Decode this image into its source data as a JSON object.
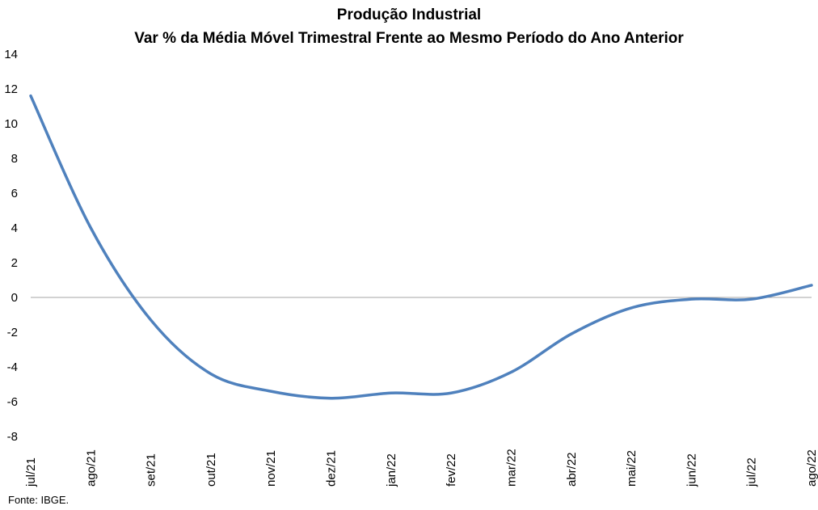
{
  "chart_data": {
    "type": "line",
    "title": "Produção Industrial",
    "subtitle": "Var % da Média Móvel Trimestral Frente ao Mesmo Período do Ano Anterior",
    "xlabel": "",
    "ylabel": "",
    "categories": [
      "jul/21",
      "ago/21",
      "set/21",
      "out/21",
      "nov/21",
      "dez/21",
      "jan/22",
      "fev/22",
      "mar/22",
      "abr/22",
      "mai/22",
      "jun/22",
      "jul/22",
      "ago/22"
    ],
    "series": [
      {
        "values": [
          11.6,
          4.0,
          -1.3,
          -4.4,
          -5.4,
          -5.8,
          -5.5,
          -5.5,
          -4.3,
          -2.1,
          -0.6,
          -0.1,
          -0.1,
          0.7
        ]
      }
    ],
    "ylim": [
      -8,
      14
    ],
    "yticks": [
      14,
      12,
      10,
      8,
      6,
      4,
      2,
      0,
      -2,
      -4,
      -6,
      -8
    ],
    "grid": false,
    "legend": "none",
    "line_color": "#4F81BD",
    "zero_line_color": "#A6A6A6"
  },
  "source": "Fonte: IBGE."
}
